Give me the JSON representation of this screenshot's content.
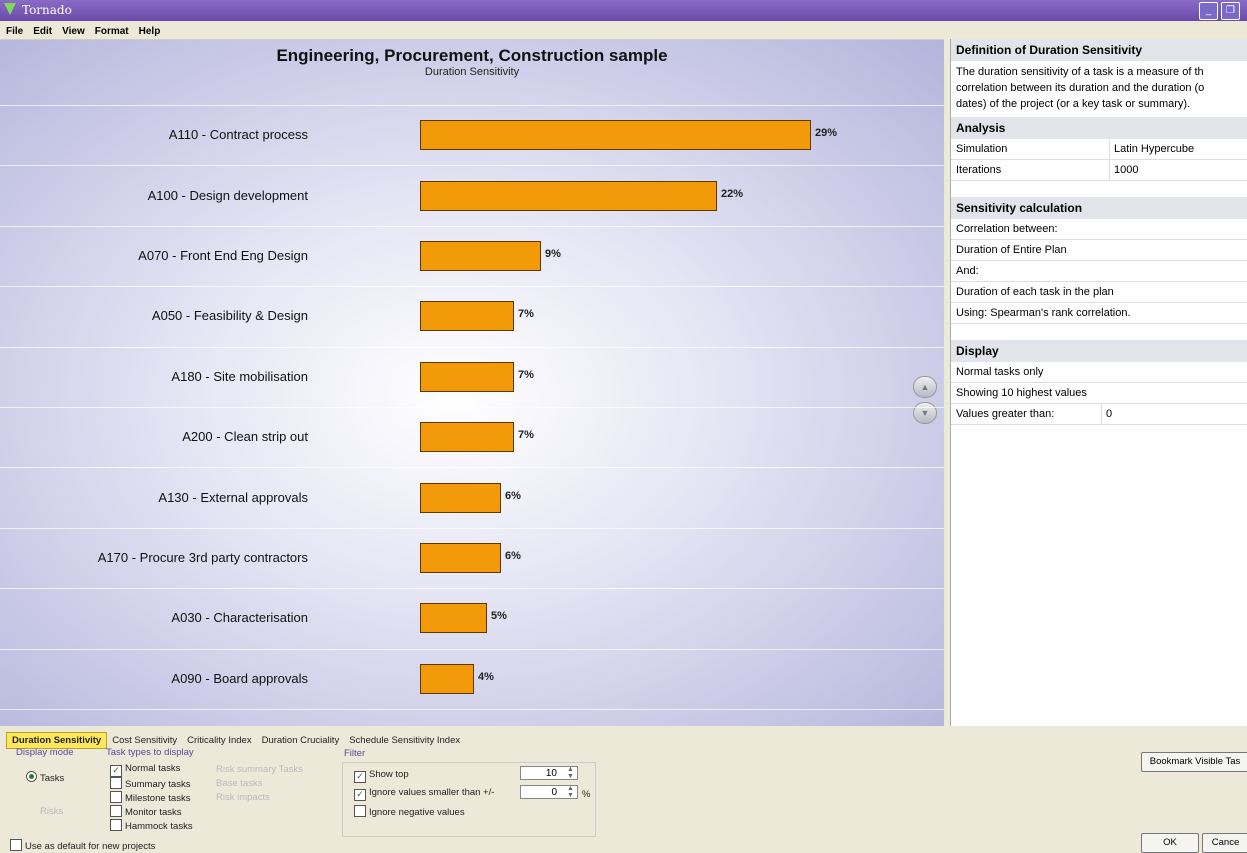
{
  "window": {
    "title": "Tornado"
  },
  "menu": [
    "File",
    "Edit",
    "View",
    "Format",
    "Help"
  ],
  "chart_data": {
    "type": "bar",
    "orientation": "horizontal",
    "title": "Engineering, Procurement, Construction sample",
    "subtitle": "Duration Sensitivity",
    "categories": [
      "A110 - Contract process",
      "A100 - Design development",
      "A070 - Front End Eng Design",
      "A050 - Feasibility & Design",
      "A180 - Site mobilisation",
      "A200 - Clean strip out",
      "A130 - External approvals",
      "A170 - Procure 3rd party contractors",
      "A030 - Characterisation",
      "A090 - Board approvals"
    ],
    "values": [
      29,
      22,
      9,
      7,
      7,
      7,
      6,
      6,
      5,
      4
    ],
    "value_labels": [
      "29%",
      "22%",
      "9%",
      "7%",
      "7%",
      "7%",
      "6%",
      "6%",
      "5%",
      "4%"
    ],
    "color": "#f39a0b",
    "xlim": [
      0,
      29
    ],
    "grid": false
  },
  "side": {
    "def_title": "Definition of Duration Sensitivity",
    "def_lines": [
      "The duration sensitivity of a task is a measure of th",
      "correlation between its duration and the duration (o",
      "dates) of the project (or a key task or summary)."
    ],
    "analysis_title": "Analysis",
    "analysis_rows": [
      {
        "k": "Simulation",
        "v": "Latin Hypercube"
      },
      {
        "k": "Iterations",
        "v": "1000"
      }
    ],
    "calc_title": "Sensitivity calculation",
    "calc_rows": [
      "Correlation between:",
      "Duration of Entire Plan",
      "And:",
      "Duration of each task in the plan",
      "Using: Spearman's rank correlation."
    ],
    "display_title": "Display",
    "display_rows": [
      "Normal tasks only",
      "Showing 10 highest values"
    ],
    "display_kv": {
      "k": "Values greater than:",
      "v": "0"
    }
  },
  "tabs": [
    "Duration Sensitivity",
    "Cost Sensitivity",
    "Criticality Index",
    "Duration Cruciality",
    "Schedule Sensitivity Index"
  ],
  "bottom": {
    "display_mode_label": "Display mode",
    "mode_tasks": "Tasks",
    "mode_risks": "Risks",
    "task_types_label": "Task types to display",
    "task_types": [
      "Normal tasks",
      "Summary tasks",
      "Milestone tasks",
      "Monitor tasks",
      "Hammock tasks"
    ],
    "task_types_checked": [
      true,
      false,
      false,
      false,
      false
    ],
    "risk_types": [
      "Risk summary Tasks",
      "Base tasks",
      "Risk impacts"
    ],
    "filter_label": "Filter",
    "show_top_label": "Show top",
    "show_top_value": "10",
    "ignore_small_label": "Ignore values smaller than +/-",
    "ignore_small_value": "0",
    "percent": "%",
    "ignore_negative_label": "Ignore negative values",
    "default_label": "Use as default for new projects",
    "bookmark_label": "Bookmark Visible Tas",
    "ok_label": "OK",
    "cancel_label": "Cance"
  }
}
